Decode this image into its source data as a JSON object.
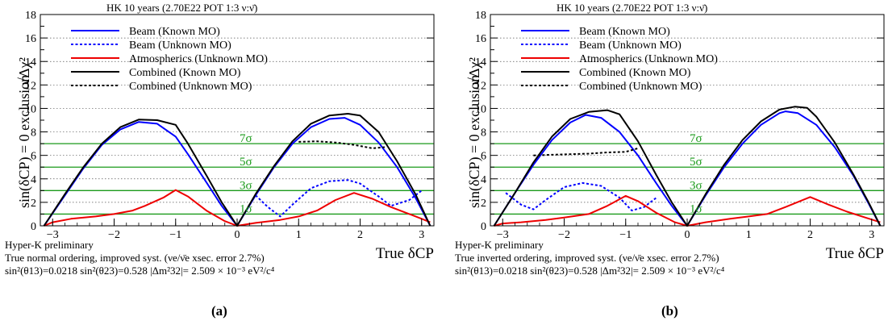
{
  "chart_data": [
    {
      "type": "line",
      "panel_label": "(a)",
      "title": "HK 10 years (2.70E22 POT 1:3 ν:ν̄)",
      "xlabel": "True δCP",
      "ylabel_main": "sin(δCP) = 0 exclusion",
      "ylabel_unit": "√Δχ²",
      "xlim": [
        -3.2,
        3.2
      ],
      "ylim": [
        0,
        18
      ],
      "xticks": [
        "−3",
        "−2",
        "−1",
        "0",
        "1",
        "2",
        "3"
      ],
      "yticks": [
        "0",
        "2",
        "4",
        "6",
        "8",
        "10",
        "12",
        "14",
        "16",
        "18"
      ],
      "grid": "horizontal dotted",
      "legend_placement": "top-left",
      "sigma_lines": [
        {
          "y": 1,
          "label": "1σ"
        },
        {
          "y": 3,
          "label": "3σ"
        },
        {
          "y": 5,
          "label": "5σ"
        },
        {
          "y": 7,
          "label": "7σ"
        }
      ],
      "sigma_color": "#1a9a1a",
      "notes": [
        "Hyper-K preliminary",
        "True normal ordering, improved syst. (νe/ν̄e xsec. error 2.7%)",
        "sin²(θ13)=0.0218 sin²(θ23)=0.528 |Δm²32|= 2.509 × 10⁻³ eV²/c⁴"
      ],
      "series": [
        {
          "name": "Beam (Known MO)",
          "color": "#0000ff",
          "dash": "solid",
          "points": [
            [
              -3.14,
              0
            ],
            [
              -2.8,
              2.6
            ],
            [
              -2.5,
              4.9
            ],
            [
              -2.2,
              6.9
            ],
            [
              -1.9,
              8.2
            ],
            [
              -1.6,
              8.85
            ],
            [
              -1.3,
              8.7
            ],
            [
              -1.0,
              7.6
            ],
            [
              -0.8,
              6.1
            ],
            [
              -0.5,
              3.7
            ],
            [
              -0.25,
              1.7
            ],
            [
              0,
              0
            ],
            [
              0.3,
              2.6
            ],
            [
              0.6,
              5.0
            ],
            [
              0.9,
              7.0
            ],
            [
              1.2,
              8.4
            ],
            [
              1.5,
              9.1
            ],
            [
              1.75,
              9.2
            ],
            [
              2.0,
              8.6
            ],
            [
              2.3,
              7.1
            ],
            [
              2.6,
              5.0
            ],
            [
              2.9,
              2.4
            ],
            [
              3.14,
              0
            ]
          ]
        },
        {
          "name": "Beam (Unknown MO)",
          "color": "#0000ff",
          "dash": "dotted",
          "points": [
            [
              0.3,
              2.6
            ],
            [
              0.5,
              1.6
            ],
            [
              0.7,
              0.8
            ],
            [
              0.9,
              1.8
            ],
            [
              1.2,
              3.2
            ],
            [
              1.5,
              3.8
            ],
            [
              1.8,
              3.9
            ],
            [
              2.0,
              3.6
            ],
            [
              2.3,
              2.5
            ],
            [
              2.5,
              1.7
            ],
            [
              2.8,
              2.2
            ],
            [
              3.0,
              3.0
            ]
          ]
        },
        {
          "name": "Atmospherics (Unknown MO)",
          "color": "#ee0000",
          "dash": "solid",
          "points": [
            [
              -3.14,
              0
            ],
            [
              -3.0,
              0.3
            ],
            [
              -2.7,
              0.6
            ],
            [
              -2.3,
              0.8
            ],
            [
              -2.0,
              1.0
            ],
            [
              -1.7,
              1.3
            ],
            [
              -1.5,
              1.7
            ],
            [
              -1.2,
              2.4
            ],
            [
              -1.0,
              3.05
            ],
            [
              -0.8,
              2.5
            ],
            [
              -0.5,
              1.3
            ],
            [
              -0.2,
              0.4
            ],
            [
              0,
              0
            ],
            [
              0.3,
              0.25
            ],
            [
              0.7,
              0.5
            ],
            [
              1.0,
              0.8
            ],
            [
              1.3,
              1.3
            ],
            [
              1.6,
              2.2
            ],
            [
              1.9,
              2.8
            ],
            [
              2.2,
              2.3
            ],
            [
              2.5,
              1.6
            ],
            [
              2.8,
              1.0
            ],
            [
              3.0,
              0.6
            ],
            [
              3.14,
              0.3
            ]
          ]
        },
        {
          "name": "Combined (Known MO)",
          "color": "#000000",
          "dash": "solid",
          "points": [
            [
              -3.14,
              0
            ],
            [
              -2.8,
              2.7
            ],
            [
              -2.5,
              5.0
            ],
            [
              -2.2,
              7.0
            ],
            [
              -1.9,
              8.4
            ],
            [
              -1.6,
              9.05
            ],
            [
              -1.3,
              9.0
            ],
            [
              -1.0,
              8.6
            ],
            [
              -0.8,
              7.0
            ],
            [
              -0.5,
              4.3
            ],
            [
              -0.25,
              2.0
            ],
            [
              0,
              0
            ],
            [
              0.3,
              2.7
            ],
            [
              0.6,
              5.1
            ],
            [
              0.9,
              7.2
            ],
            [
              1.2,
              8.7
            ],
            [
              1.5,
              9.4
            ],
            [
              1.8,
              9.55
            ],
            [
              2.0,
              9.4
            ],
            [
              2.3,
              8.0
            ],
            [
              2.6,
              5.5
            ],
            [
              2.9,
              2.7
            ],
            [
              3.14,
              0
            ]
          ]
        },
        {
          "name": "Combined (Unknown MO)",
          "color": "#000000",
          "dash": "dotted",
          "points": [
            [
              1.0,
              7.15
            ],
            [
              1.3,
              7.2
            ],
            [
              1.6,
              7.1
            ],
            [
              1.9,
              6.9
            ],
            [
              2.2,
              6.6
            ],
            [
              2.4,
              6.7
            ]
          ]
        }
      ]
    },
    {
      "type": "line",
      "panel_label": "(b)",
      "title": "HK 10 years (2.70E22 POT 1:3 ν:ν̄)",
      "xlabel": "True δCP",
      "ylabel_main": "sin(δCP) = 0 exclusion",
      "ylabel_unit": "√Δχ²",
      "xlim": [
        -3.2,
        3.2
      ],
      "ylim": [
        0,
        18
      ],
      "xticks": [
        "−3",
        "−2",
        "−1",
        "0",
        "1",
        "2",
        "3"
      ],
      "yticks": [
        "0",
        "2",
        "4",
        "6",
        "8",
        "10",
        "12",
        "14",
        "16",
        "18"
      ],
      "grid": "horizontal dotted",
      "legend_placement": "top-left",
      "sigma_lines": [
        {
          "y": 1,
          "label": "1σ"
        },
        {
          "y": 3,
          "label": "3σ"
        },
        {
          "y": 5,
          "label": "5σ"
        },
        {
          "y": 7,
          "label": "7σ"
        }
      ],
      "sigma_color": "#1a9a1a",
      "notes": [
        "Hyper-K preliminary",
        "True inverted ordering, improved syst. (νe/ν̄e xsec. error 2.7%)",
        "sin²(θ13)=0.0218 sin²(θ23)=0.528 |Δm²32|= 2.509 × 10⁻³ eV²/c⁴"
      ],
      "series": [
        {
          "name": "Beam (Known MO)",
          "color": "#0000ff",
          "dash": "solid",
          "points": [
            [
              -3.14,
              0
            ],
            [
              -2.8,
              2.8
            ],
            [
              -2.5,
              5.2
            ],
            [
              -2.2,
              7.3
            ],
            [
              -1.9,
              8.8
            ],
            [
              -1.65,
              9.45
            ],
            [
              -1.4,
              9.2
            ],
            [
              -1.1,
              8.0
            ],
            [
              -0.8,
              6.0
            ],
            [
              -0.5,
              3.6
            ],
            [
              -0.25,
              1.7
            ],
            [
              0,
              0
            ],
            [
              0.3,
              2.6
            ],
            [
              0.6,
              5.0
            ],
            [
              0.9,
              7.0
            ],
            [
              1.2,
              8.6
            ],
            [
              1.5,
              9.6
            ],
            [
              1.6,
              9.75
            ],
            [
              1.8,
              9.6
            ],
            [
              2.1,
              8.6
            ],
            [
              2.4,
              6.7
            ],
            [
              2.7,
              4.3
            ],
            [
              2.95,
              1.9
            ],
            [
              3.14,
              0
            ]
          ]
        },
        {
          "name": "Beam (Unknown MO)",
          "color": "#0000ff",
          "dash": "dotted",
          "points": [
            [
              -2.95,
              2.8
            ],
            [
              -2.7,
              1.8
            ],
            [
              -2.5,
              1.4
            ],
            [
              -2.3,
              2.2
            ],
            [
              -2.0,
              3.3
            ],
            [
              -1.7,
              3.65
            ],
            [
              -1.4,
              3.4
            ],
            [
              -1.1,
              2.4
            ],
            [
              -0.9,
              1.3
            ],
            [
              -0.7,
              1.6
            ],
            [
              -0.5,
              2.4
            ]
          ]
        },
        {
          "name": "Atmospherics (Unknown MO)",
          "color": "#ee0000",
          "dash": "solid",
          "points": [
            [
              -3.14,
              0
            ],
            [
              -3.0,
              0.2
            ],
            [
              -2.7,
              0.3
            ],
            [
              -2.3,
              0.5
            ],
            [
              -2.0,
              0.7
            ],
            [
              -1.6,
              1.0
            ],
            [
              -1.3,
              1.7
            ],
            [
              -1.0,
              2.55
            ],
            [
              -0.8,
              2.1
            ],
            [
              -0.5,
              1.1
            ],
            [
              -0.2,
              0.3
            ],
            [
              0,
              0
            ],
            [
              0.3,
              0.3
            ],
            [
              0.7,
              0.6
            ],
            [
              1.0,
              0.8
            ],
            [
              1.3,
              1.0
            ],
            [
              1.6,
              1.6
            ],
            [
              2.0,
              2.45
            ],
            [
              2.3,
              1.8
            ],
            [
              2.6,
              1.2
            ],
            [
              2.9,
              0.7
            ],
            [
              3.14,
              0.3
            ]
          ]
        },
        {
          "name": "Combined (Known MO)",
          "color": "#000000",
          "dash": "solid",
          "points": [
            [
              -3.14,
              0
            ],
            [
              -2.8,
              2.8
            ],
            [
              -2.5,
              5.4
            ],
            [
              -2.2,
              7.6
            ],
            [
              -1.9,
              9.1
            ],
            [
              -1.6,
              9.7
            ],
            [
              -1.3,
              9.85
            ],
            [
              -1.1,
              9.5
            ],
            [
              -0.8,
              7.2
            ],
            [
              -0.5,
              4.3
            ],
            [
              -0.25,
              2.0
            ],
            [
              0,
              0
            ],
            [
              0.3,
              2.7
            ],
            [
              0.6,
              5.2
            ],
            [
              0.9,
              7.3
            ],
            [
              1.2,
              8.9
            ],
            [
              1.5,
              9.9
            ],
            [
              1.75,
              10.15
            ],
            [
              1.95,
              10.05
            ],
            [
              2.1,
              9.3
            ],
            [
              2.4,
              7.1
            ],
            [
              2.7,
              4.4
            ],
            [
              2.95,
              2.0
            ],
            [
              3.14,
              0
            ]
          ]
        },
        {
          "name": "Combined (Unknown MO)",
          "color": "#000000",
          "dash": "dotted",
          "points": [
            [
              -2.5,
              6.0
            ],
            [
              -2.2,
              6.05
            ],
            [
              -1.9,
              6.1
            ],
            [
              -1.6,
              6.15
            ],
            [
              -1.3,
              6.25
            ],
            [
              -1.0,
              6.3
            ],
            [
              -0.8,
              6.6
            ]
          ]
        }
      ]
    }
  ]
}
